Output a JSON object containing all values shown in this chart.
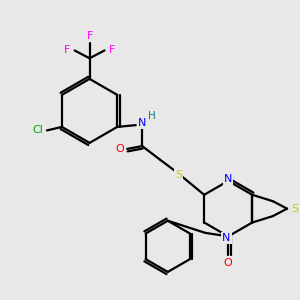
{
  "background_color": "#e8e8e8",
  "atom_colors": {
    "C": "#000000",
    "N": "#0000ff",
    "O": "#ff0000",
    "S": "#cccc00",
    "F": "#ff00ff",
    "Cl": "#00aa00",
    "H": "#008080"
  },
  "figsize": [
    3.0,
    3.0
  ],
  "dpi": 100
}
